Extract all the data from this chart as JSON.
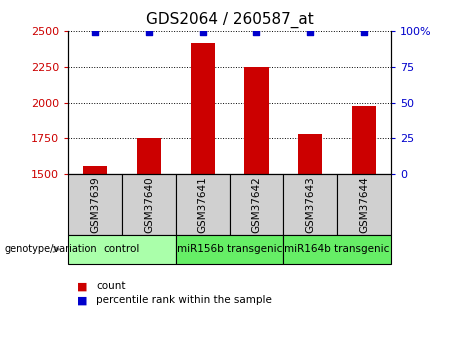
{
  "title": "GDS2064 / 260587_at",
  "samples": [
    "GSM37639",
    "GSM37640",
    "GSM37641",
    "GSM37642",
    "GSM37643",
    "GSM37644"
  ],
  "bar_values": [
    1555,
    1755,
    2420,
    2250,
    1780,
    1980
  ],
  "percentile_values": [
    99,
    99,
    99,
    99,
    99,
    99
  ],
  "ylim_left": [
    1500,
    2500
  ],
  "yticks_left": [
    1500,
    1750,
    2000,
    2250,
    2500
  ],
  "ylim_right": [
    0,
    100
  ],
  "yticks_right": [
    0,
    25,
    50,
    75,
    100
  ],
  "bar_color": "#cc0000",
  "dot_color": "#0000cc",
  "bar_width": 0.45,
  "groups": [
    {
      "label": "control",
      "samples": [
        "GSM37639",
        "GSM37640"
      ],
      "color": "#aaffaa"
    },
    {
      "label": "miR156b transgenic",
      "samples": [
        "GSM37641",
        "GSM37642"
      ],
      "color": "#66ee66"
    },
    {
      "label": "miR164b transgenic",
      "samples": [
        "GSM37643",
        "GSM37644"
      ],
      "color": "#66ee66"
    }
  ],
  "genotype_label": "genotype/variation",
  "legend_count_label": "count",
  "legend_percentile_label": "percentile rank within the sample",
  "tick_label_color_left": "#cc0000",
  "tick_label_color_right": "#0000cc",
  "title_fontsize": 11,
  "tick_fontsize": 8,
  "sample_tick_fontsize": 7.5,
  "group_fontsize": 7.5,
  "legend_fontsize": 7.5
}
